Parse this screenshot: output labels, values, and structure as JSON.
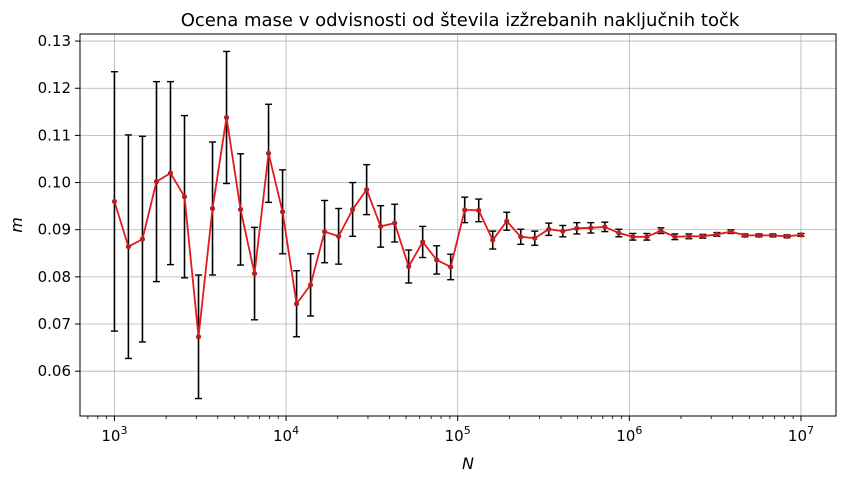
{
  "chart_data": {
    "type": "line",
    "title": "Ocena mase v odvisnosti od števila izžrebanih naključnih točk",
    "xlabel": "N",
    "ylabel": "m",
    "xscale": "log",
    "xlim": [
      630,
      16000000
    ],
    "ylim": [
      0.0505,
      0.1315
    ],
    "grid": true,
    "x_ticks": [
      {
        "value": 1000,
        "base": "10",
        "exp": "3"
      },
      {
        "value": 10000,
        "base": "10",
        "exp": "4"
      },
      {
        "value": 100000,
        "base": "10",
        "exp": "5"
      },
      {
        "value": 1000000,
        "base": "10",
        "exp": "6"
      },
      {
        "value": 10000000,
        "base": "10",
        "exp": "7"
      }
    ],
    "y_ticks": [
      {
        "value": 0.06,
        "label": "0.06"
      },
      {
        "value": 0.07,
        "label": "0.07"
      },
      {
        "value": 0.08,
        "label": "0.08"
      },
      {
        "value": 0.09,
        "label": "0.09"
      },
      {
        "value": 0.1,
        "label": "0.10"
      },
      {
        "value": 0.11,
        "label": "0.11"
      },
      {
        "value": 0.12,
        "label": "0.12"
      },
      {
        "value": 0.13,
        "label": "0.13"
      }
    ],
    "line_color": "#e41a1c",
    "marker_color": "#b22222",
    "errorbar_color": "#000000",
    "series": [
      {
        "x": [
          1000,
          1206,
          1456,
          1758,
          2121,
          2560,
          3089,
          3728,
          4498,
          5429,
          6551,
          7906,
          9541,
          11514,
          13895,
          16768,
          20236,
          24421,
          29471,
          35565,
          42919,
          51795,
          62506,
          75431,
          91029,
          109854,
          132571,
          159986,
          193070,
          232995,
          281177,
          339322,
          409492,
          494171,
          596362,
          719686,
          868511,
          1048113,
          1264855,
          1526418,
          1842069,
          2222996,
          2682696,
          3237458,
          3906940,
          4714866,
          5689866,
          6866488,
          8286428,
          10000000
        ],
        "y": [
          0.096,
          0.0864,
          0.088,
          0.1002,
          0.102,
          0.097,
          0.0673,
          0.0945,
          0.1138,
          0.0943,
          0.0807,
          0.1062,
          0.0938,
          0.0743,
          0.0783,
          0.0896,
          0.0886,
          0.0943,
          0.0985,
          0.0907,
          0.0914,
          0.0822,
          0.0874,
          0.0836,
          0.0821,
          0.0942,
          0.0941,
          0.0878,
          0.0918,
          0.0885,
          0.0882,
          0.0901,
          0.0897,
          0.0903,
          0.0904,
          0.0906,
          0.0893,
          0.0885,
          0.0885,
          0.0898,
          0.0885,
          0.0886,
          0.0886,
          0.089,
          0.0896,
          0.0888,
          0.0888,
          0.0888,
          0.0886,
          0.0889
        ],
        "err": [
          0.0275,
          0.0237,
          0.0218,
          0.0212,
          0.0194,
          0.0172,
          0.0131,
          0.0141,
          0.014,
          0.0118,
          0.0098,
          0.0104,
          0.0089,
          0.007,
          0.0066,
          0.0066,
          0.0059,
          0.0057,
          0.0053,
          0.0044,
          0.004,
          0.0035,
          0.0033,
          0.003,
          0.0027,
          0.0027,
          0.0024,
          0.0019,
          0.0019,
          0.0016,
          0.0015,
          0.0013,
          0.0012,
          0.0012,
          0.0011,
          0.001,
          0.0008,
          0.0007,
          0.0007,
          0.0006,
          0.0006,
          0.0005,
          0.0004,
          0.0004,
          0.0004,
          0.0003,
          0.0003,
          0.0003,
          0.0003,
          0.0003
        ]
      }
    ]
  }
}
